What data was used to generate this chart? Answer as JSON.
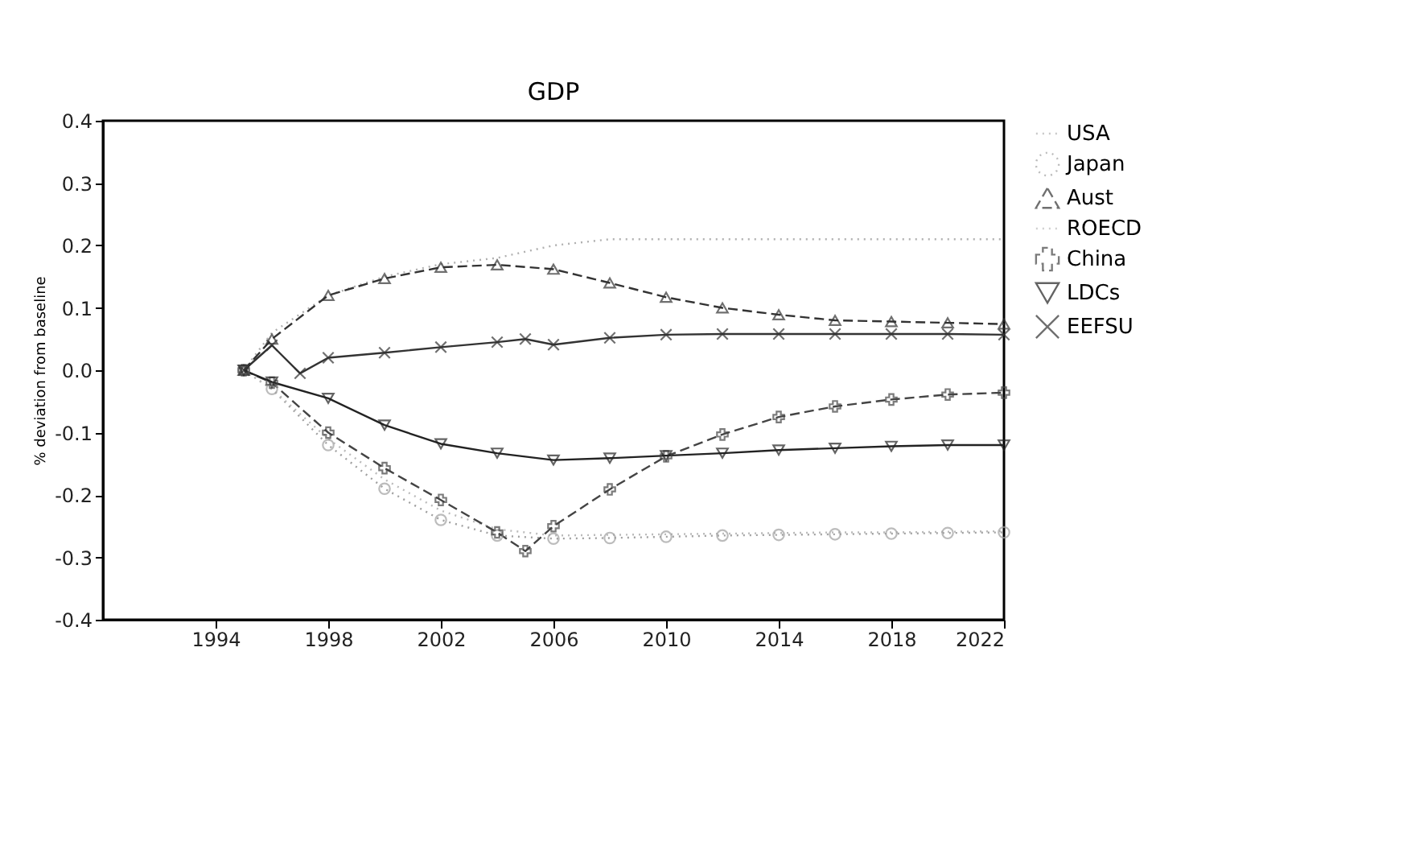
{
  "chart_data": {
    "type": "line",
    "title": "GDP",
    "ylabel": "% deviation from baseline",
    "xlim": [
      1990,
      2022
    ],
    "xticks": [
      1994,
      1998,
      2002,
      2006,
      2010,
      2014,
      2018,
      2022
    ],
    "ylim": [
      -0.4,
      0.4
    ],
    "yticks": [
      -0.4,
      -0.3,
      -0.2,
      -0.1,
      {
        "value": 0,
        "label": "0.0"
      },
      0.1,
      0.2,
      0.3,
      0.4
    ],
    "grid": false,
    "legend": "right",
    "x": [
      1995,
      1996,
      1998,
      2000,
      2002,
      2004,
      2006,
      2008,
      2010,
      2012,
      2014,
      2016,
      2018,
      2020,
      2022
    ],
    "series": [
      {
        "name": "USA",
        "color": "#b0b0b0",
        "marker": "none",
        "line_style": "dotted",
        "values": [
          0,
          0.06,
          0.12,
          0.15,
          0.17,
          0.18,
          0.2,
          0.21,
          0.21,
          0.21,
          0.21,
          0.21,
          0.21,
          0.21,
          0.21
        ]
      },
      {
        "name": "Japan",
        "color": "#a0a0a0",
        "marker": "circle",
        "line_style": "dotted",
        "values": [
          0,
          -0.03,
          -0.12,
          -0.19,
          -0.24,
          -0.265,
          -0.27,
          -0.269,
          -0.267,
          -0.265,
          -0.264,
          -0.263,
          -0.262,
          -0.261,
          -0.26
        ]
      },
      {
        "name": "Aust",
        "color": "#333333",
        "marker": "triangle",
        "line_style": "dashed",
        "values": [
          0,
          0.05,
          0.12,
          0.147,
          0.165,
          0.169,
          0.162,
          0.14,
          0.117,
          0.1,
          0.089,
          0.08,
          0.078,
          0.076,
          0.074
        ]
      },
      {
        "name": "ROECD",
        "color": "#bbbbbb",
        "marker": "none",
        "line_style": "dotted",
        "values": [
          0,
          -0.03,
          -0.11,
          -0.175,
          -0.225,
          -0.255,
          -0.265,
          -0.264,
          -0.263,
          -0.262,
          -0.261,
          -0.26,
          -0.26,
          -0.259,
          -0.258
        ]
      },
      {
        "name": "China",
        "color": "#444444",
        "marker": "cross",
        "line_style": "dashed",
        "x": [
          1995,
          1996,
          1998,
          2000,
          2002,
          2004,
          2005,
          2006,
          2008,
          2010,
          2012,
          2014,
          2016,
          2018,
          2020,
          2022
        ],
        "values": [
          0,
          -0.02,
          -0.1,
          -0.157,
          -0.208,
          -0.26,
          -0.29,
          -0.25,
          -0.191,
          -0.138,
          -0.103,
          -0.075,
          -0.058,
          -0.047,
          -0.039,
          -0.036
        ]
      },
      {
        "name": "LDCs",
        "color": "#222222",
        "marker": "triangle-down",
        "line_style": "solid",
        "values": [
          0,
          -0.019,
          -0.045,
          -0.088,
          -0.118,
          -0.133,
          -0.144,
          -0.141,
          -0.137,
          -0.133,
          -0.128,
          -0.125,
          -0.122,
          -0.12,
          -0.12
        ]
      },
      {
        "name": "EEFSU",
        "color": "#333333",
        "marker": "x",
        "line_style": "solid",
        "x": [
          1995,
          1996,
          1997,
          1998,
          2000,
          2002,
          2004,
          2005,
          2006,
          2008,
          2010,
          2012,
          2014,
          2016,
          2018,
          2020,
          2022
        ],
        "values": [
          0,
          0.04,
          -0.005,
          0.02,
          0.028,
          0.037,
          0.045,
          0.05,
          0.041,
          0.052,
          0.057,
          0.058,
          0.058,
          0.058,
          0.058,
          0.058,
          0.057
        ]
      }
    ]
  }
}
